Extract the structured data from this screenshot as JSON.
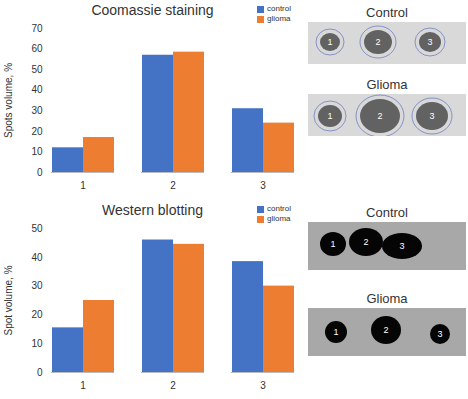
{
  "chart_data": [
    {
      "type": "bar",
      "title": "Coomassie staining",
      "y_label": "Spots volume, %",
      "categories": [
        "1",
        "2",
        "3"
      ],
      "series": [
        {
          "name": "control",
          "color": "#4472c4",
          "values": [
            12,
            57,
            31
          ]
        },
        {
          "name": "glioma",
          "color": "#ed7d31",
          "values": [
            17,
            58.5,
            24
          ]
        }
      ],
      "ylim": [
        0,
        70
      ],
      "yticks": [
        0,
        10,
        20,
        30,
        40,
        50,
        60,
        70
      ],
      "grid": false,
      "legend": "top-right"
    },
    {
      "type": "bar",
      "title": "Western blotting",
      "y_label": "Spot volume, %",
      "categories": [
        "1",
        "2",
        "3"
      ],
      "series": [
        {
          "name": "control",
          "color": "#4472c4",
          "values": [
            15.5,
            46,
            38.5
          ]
        },
        {
          "name": "glioma",
          "color": "#ed7d31",
          "values": [
            25,
            44.5,
            30
          ]
        }
      ],
      "ylim": [
        0,
        50
      ],
      "yticks": [
        0,
        10,
        20,
        30,
        40,
        50
      ],
      "grid": false,
      "legend": "top-right"
    }
  ],
  "blots": [
    {
      "title": "Control",
      "spots": [
        "1",
        "2",
        "3"
      ]
    },
    {
      "title": "Glioma",
      "spots": [
        "1",
        "2",
        "3"
      ]
    },
    {
      "title": "Control",
      "spots": [
        "1",
        "2",
        "3"
      ]
    },
    {
      "title": "Glioma",
      "spots": [
        "1",
        "2",
        "3"
      ]
    }
  ]
}
